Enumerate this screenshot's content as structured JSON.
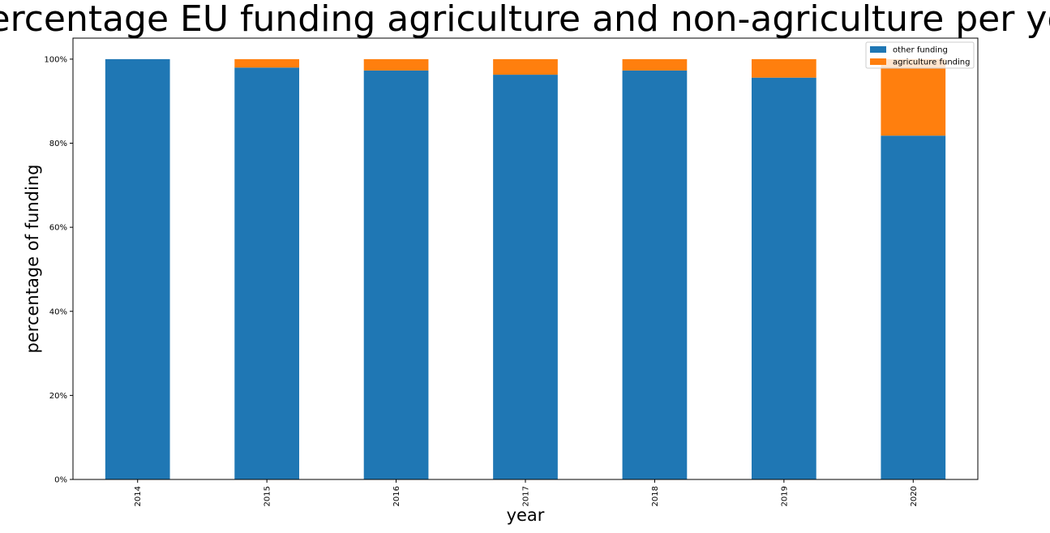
{
  "chart_data": {
    "type": "bar",
    "stacked": true,
    "title": "Percentage EU funding agriculture and non-agriculture per year",
    "xlabel": "year",
    "ylabel": "percentage of funding",
    "categories": [
      "2014",
      "2015",
      "2016",
      "2017",
      "2018",
      "2019",
      "2020"
    ],
    "series": [
      {
        "name": "other funding",
        "color": "#1f77b4",
        "values": [
          100.0,
          98.0,
          97.3,
          96.3,
          97.3,
          95.6,
          81.8
        ]
      },
      {
        "name": "agriculture funding",
        "color": "#ff7f0e",
        "values": [
          0.0,
          2.0,
          2.7,
          3.7,
          2.7,
          4.4,
          18.2
        ]
      }
    ],
    "ylim": [
      0,
      105
    ],
    "yticks": [
      0,
      20,
      40,
      60,
      80,
      100
    ],
    "ytick_labels": [
      "0%",
      "20%",
      "40%",
      "60%",
      "80%",
      "100%"
    ],
    "grid": false,
    "legend_position": "top-right"
  }
}
